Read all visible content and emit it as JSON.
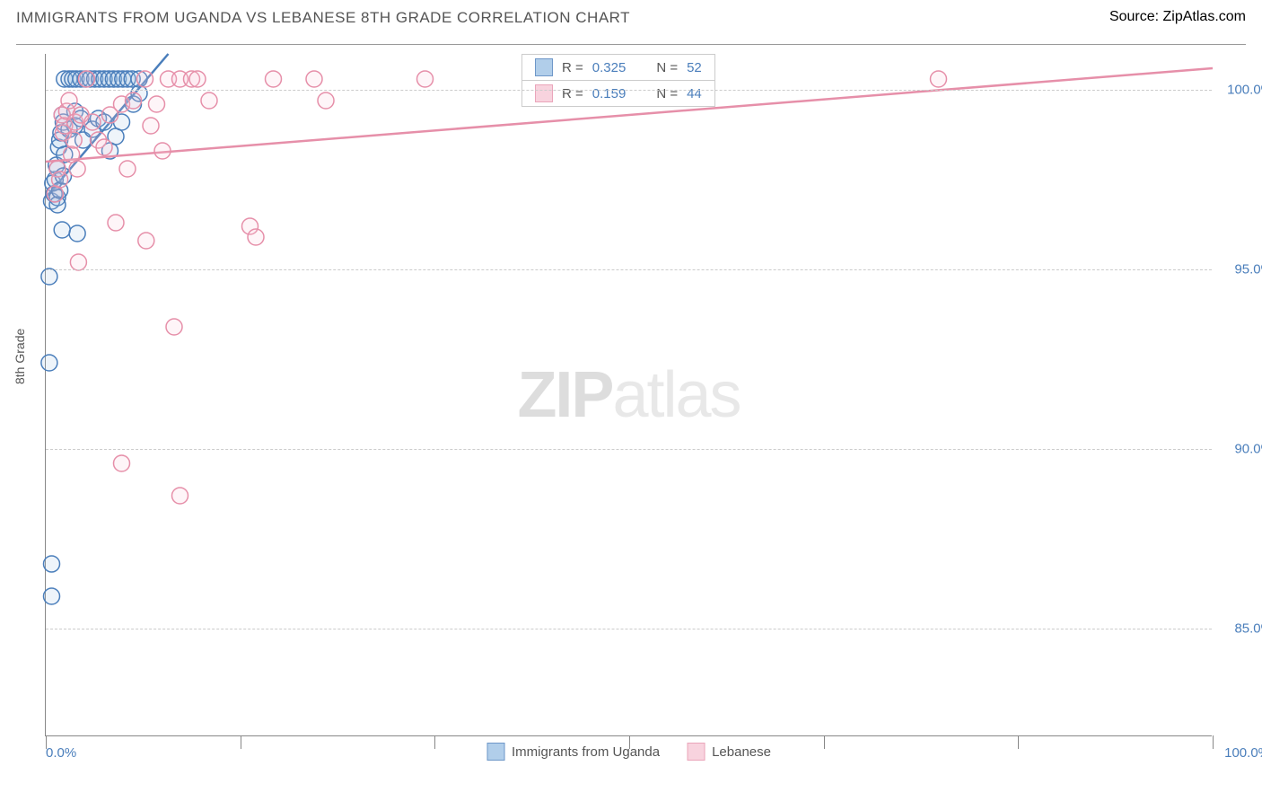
{
  "title": "IMMIGRANTS FROM UGANDA VS LEBANESE 8TH GRADE CORRELATION CHART",
  "source_label": "Source:",
  "source_name": "ZipAtlas.com",
  "watermark_bold": "ZIP",
  "watermark_light": "atlas",
  "ylabel": "8th Grade",
  "chart": {
    "type": "scatter",
    "background_color": "#ffffff",
    "grid_color": "#cccccc",
    "axis_color": "#888888",
    "xlim": [
      0,
      100
    ],
    "ylim": [
      82,
      101
    ],
    "yticks": [
      {
        "value": 100.0,
        "label": "100.0%"
      },
      {
        "value": 95.0,
        "label": "95.0%"
      },
      {
        "value": 90.0,
        "label": "90.0%"
      },
      {
        "value": 85.0,
        "label": "85.0%"
      }
    ],
    "xtick_vlines": [
      0,
      16.67,
      33.33,
      50,
      66.67,
      83.33,
      100
    ],
    "xtick_left": "0.0%",
    "xtick_right": "100.0%",
    "marker_radius": 9,
    "marker_stroke_width": 1.5,
    "marker_fill_opacity": 0.18,
    "trend_stroke_width": 2.5
  },
  "series": [
    {
      "id": "uganda",
      "label": "Immigrants from Uganda",
      "color_stroke": "#4a7ebb",
      "color_fill": "#9ec3e6",
      "R": "0.325",
      "N": "52",
      "trend": {
        "x1": 0,
        "y1": 97.0,
        "x2": 10.5,
        "y2": 101.0
      },
      "points": [
        [
          0.3,
          94.8
        ],
        [
          0.3,
          92.4
        ],
        [
          0.5,
          86.8
        ],
        [
          0.5,
          85.9
        ],
        [
          0.5,
          96.9
        ],
        [
          0.6,
          97.4
        ],
        [
          0.7,
          97.1
        ],
        [
          0.8,
          97.5
        ],
        [
          0.9,
          97.9
        ],
        [
          1.0,
          97.0
        ],
        [
          1.0,
          97.8
        ],
        [
          1.0,
          96.8
        ],
        [
          1.1,
          98.4
        ],
        [
          1.2,
          98.6
        ],
        [
          1.2,
          97.2
        ],
        [
          1.3,
          98.8
        ],
        [
          1.4,
          99.3
        ],
        [
          1.5,
          99.1
        ],
        [
          1.5,
          97.6
        ],
        [
          1.4,
          96.1
        ],
        [
          1.6,
          98.2
        ],
        [
          1.6,
          100.3
        ],
        [
          2.0,
          100.3
        ],
        [
          2.3,
          100.3
        ],
        [
          2.6,
          100.3
        ],
        [
          3.0,
          100.3
        ],
        [
          3.4,
          100.3
        ],
        [
          3.8,
          100.3
        ],
        [
          4.2,
          100.3
        ],
        [
          4.6,
          100.3
        ],
        [
          5.0,
          100.3
        ],
        [
          5.4,
          100.3
        ],
        [
          5.8,
          100.3
        ],
        [
          6.2,
          100.3
        ],
        [
          6.6,
          100.3
        ],
        [
          7.0,
          100.3
        ],
        [
          7.4,
          100.3
        ],
        [
          2.0,
          98.9
        ],
        [
          2.5,
          99.4
        ],
        [
          2.5,
          99.0
        ],
        [
          3.0,
          99.2
        ],
        [
          3.2,
          98.6
        ],
        [
          2.7,
          96.0
        ],
        [
          4.0,
          98.9
        ],
        [
          4.5,
          99.2
        ],
        [
          5.0,
          99.1
        ],
        [
          5.5,
          98.3
        ],
        [
          6.0,
          98.7
        ],
        [
          6.5,
          99.1
        ],
        [
          7.5,
          99.6
        ],
        [
          8.0,
          99.9
        ],
        [
          8.0,
          100.3
        ]
      ]
    },
    {
      "id": "lebanese",
      "label": "Lebanese",
      "color_stroke": "#e68fa9",
      "color_fill": "#f7c9d6",
      "R": "0.159",
      "N": "44",
      "trend": {
        "x1": 0,
        "y1": 98.0,
        "x2": 100,
        "y2": 100.6
      },
      "points": [
        [
          0.8,
          97.1
        ],
        [
          1.0,
          97.8
        ],
        [
          1.2,
          97.5
        ],
        [
          1.4,
          99.3
        ],
        [
          1.5,
          98.8
        ],
        [
          1.6,
          99.0
        ],
        [
          1.8,
          99.4
        ],
        [
          2.0,
          99.7
        ],
        [
          2.2,
          98.2
        ],
        [
          2.4,
          98.6
        ],
        [
          2.5,
          99.1
        ],
        [
          2.7,
          97.8
        ],
        [
          2.8,
          95.2
        ],
        [
          3.0,
          99.3
        ],
        [
          3.5,
          100.3
        ],
        [
          4.0,
          99.1
        ],
        [
          4.5,
          98.6
        ],
        [
          5.0,
          98.4
        ],
        [
          5.5,
          99.3
        ],
        [
          6.0,
          96.3
        ],
        [
          6.5,
          99.6
        ],
        [
          7.0,
          97.8
        ],
        [
          7.5,
          99.7
        ],
        [
          8.5,
          100.3
        ],
        [
          8.6,
          95.8
        ],
        [
          9.0,
          99.0
        ],
        [
          9.5,
          99.6
        ],
        [
          10.0,
          98.3
        ],
        [
          10.5,
          100.3
        ],
        [
          11.5,
          100.3
        ],
        [
          12.5,
          100.3
        ],
        [
          13.0,
          100.3
        ],
        [
          14.0,
          99.7
        ],
        [
          6.5,
          89.6
        ],
        [
          11.0,
          93.4
        ],
        [
          11.5,
          88.7
        ],
        [
          17.5,
          96.2
        ],
        [
          18.0,
          95.9
        ],
        [
          19.5,
          100.3
        ],
        [
          23.0,
          100.3
        ],
        [
          24.0,
          99.7
        ],
        [
          32.5,
          100.3
        ],
        [
          56.5,
          100.3
        ],
        [
          76.5,
          100.3
        ]
      ]
    }
  ],
  "stat_legend": {
    "r_label": "R  =",
    "n_label": "N  ="
  },
  "tick_label_color": "#4a7ebb",
  "text_color": "#555555"
}
